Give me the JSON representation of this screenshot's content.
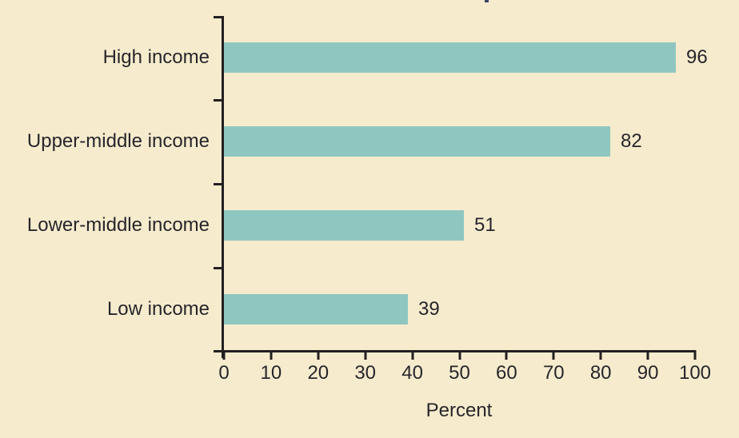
{
  "chart_data": {
    "type": "bar",
    "orientation": "horizontal",
    "categories": [
      "High income",
      "Upper-middle income",
      "Lower-middle income",
      "Low income"
    ],
    "values": [
      96,
      82,
      51,
      39
    ],
    "xlabel": "Percent",
    "x_ticks": [
      0,
      10,
      20,
      30,
      40,
      50,
      60,
      70,
      80,
      90,
      100
    ],
    "xlim": [
      0,
      100
    ],
    "grid": false,
    "legend": "none",
    "data_labels": true,
    "colors": {
      "bar": "#8FC7C0",
      "background": "#F6EBCD",
      "axis": "#231F20",
      "text": "#26262B"
    }
  }
}
